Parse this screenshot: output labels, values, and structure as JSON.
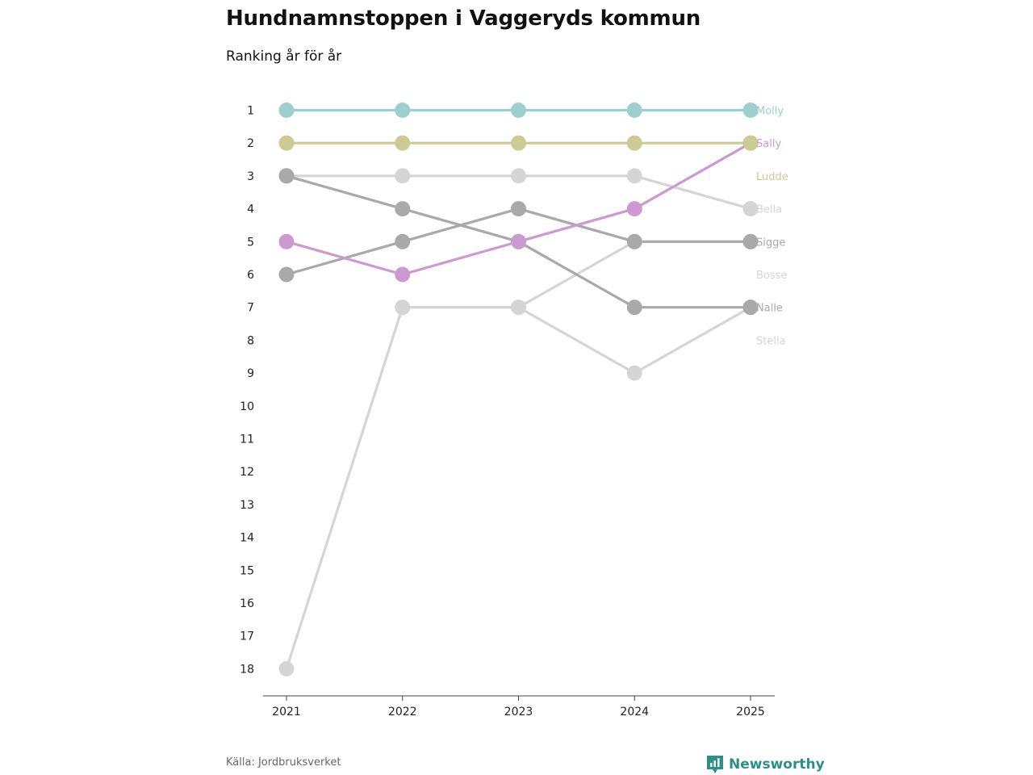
{
  "header": {
    "title": "Hundnamnstoppen i Vaggeryds kommun",
    "subtitle": "Ranking år för år"
  },
  "footer": {
    "source": "Källa: Jordbruksverket",
    "brand": "Newsworthy"
  },
  "colors": {
    "Molly": "#9ccfcd",
    "Ludde": "#cbcb94",
    "Sally": "#cc99d0",
    "gray_light": "#d5d5d5",
    "gray_dark": "#a9a9a9"
  },
  "chart_data": {
    "type": "line",
    "subtype": "bump",
    "title": "Hundnamnstoppen i Vaggeryds kommun",
    "subtitle": "Ranking år för år",
    "xlabel": "",
    "ylabel": "",
    "x": [
      "2021",
      "2022",
      "2023",
      "2024",
      "2025"
    ],
    "ylim": [
      1,
      18
    ],
    "y_reversed": true,
    "y_ticks": [
      "1",
      "2",
      "3",
      "4",
      "5",
      "6",
      "7",
      "8",
      "9",
      "10",
      "11",
      "12",
      "13",
      "14",
      "15",
      "16",
      "17",
      "18"
    ],
    "series": [
      {
        "name": "Bella",
        "color": "#d5d5d5",
        "values": [
          3,
          3,
          3,
          3,
          4
        ]
      },
      {
        "name": "Stella",
        "color": "#d5d5d5",
        "values": [
          null,
          7,
          7,
          9,
          7
        ]
      },
      {
        "name": "Bosse",
        "color": "#d5d5d5",
        "values": [
          18,
          7,
          7,
          5,
          5
        ]
      },
      {
        "name": "Nalle",
        "color": "#a9a9a9",
        "values": [
          3,
          4,
          5,
          7,
          7
        ]
      },
      {
        "name": "Sigge",
        "color": "#a9a9a9",
        "values": [
          6,
          5,
          4,
          5,
          5
        ]
      },
      {
        "name": "Sally",
        "color": "#cc99d0",
        "values": [
          5,
          6,
          5,
          4,
          2
        ]
      },
      {
        "name": "Ludde",
        "color": "#cbcb94",
        "values": [
          2,
          2,
          2,
          2,
          2
        ]
      },
      {
        "name": "Molly",
        "color": "#9ccfcd",
        "values": [
          1,
          1,
          1,
          1,
          1
        ]
      }
    ],
    "end_labels": [
      "Molly",
      "Sally",
      "Ludde",
      "Bella",
      "Sigge",
      "Bosse",
      "Nalle",
      "Stella"
    ]
  }
}
